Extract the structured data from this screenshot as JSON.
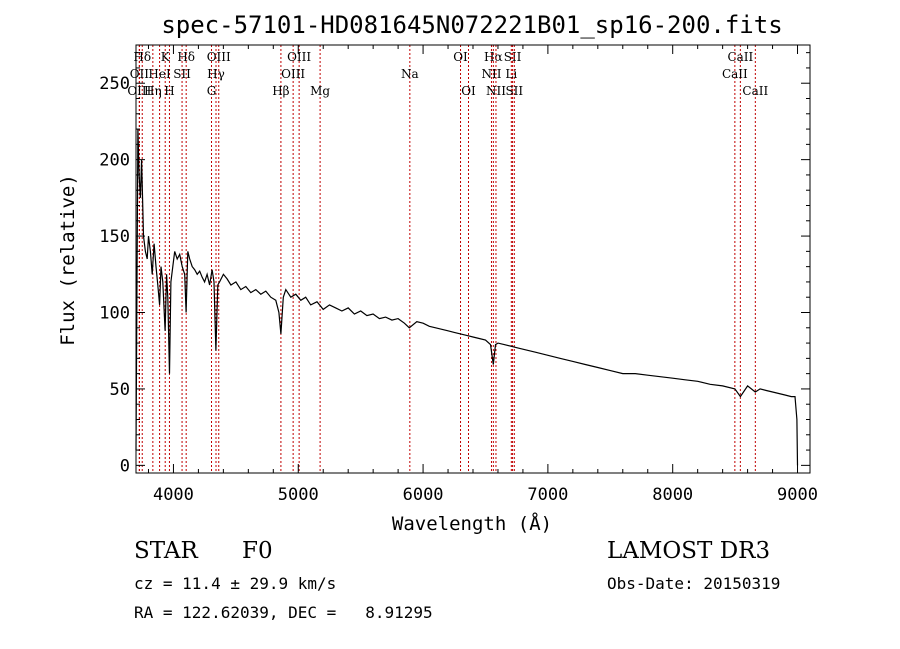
{
  "chart_data": {
    "type": "line",
    "title": "spec-57101-HD081645N072221B01_sp16-200.fits",
    "xlabel": "Wavelength (Å)",
    "ylabel": "Flux (relative)",
    "xlim": [
      3700,
      9100
    ],
    "ylim": [
      -5,
      275
    ],
    "x_ticks": [
      4000,
      5000,
      6000,
      7000,
      8000,
      9000
    ],
    "y_ticks": [
      0,
      50,
      100,
      150,
      200,
      250
    ],
    "grid": false,
    "series": [
      {
        "name": "flux",
        "x": [
          3700,
          3715,
          3725,
          3735,
          3745,
          3760,
          3775,
          3790,
          3800,
          3815,
          3830,
          3845,
          3860,
          3875,
          3889,
          3900,
          3915,
          3933,
          3945,
          3955,
          3968,
          3980,
          3995,
          4010,
          4030,
          4050,
          4070,
          4090,
          4101,
          4115,
          4130,
          4150,
          4170,
          4190,
          4210,
          4230,
          4250,
          4270,
          4290,
          4310,
          4325,
          4340,
          4355,
          4370,
          4400,
          4430,
          4460,
          4500,
          4540,
          4580,
          4620,
          4660,
          4700,
          4740,
          4780,
          4820,
          4845,
          4861,
          4880,
          4900,
          4940,
          4980,
          5020,
          5060,
          5100,
          5150,
          5200,
          5250,
          5300,
          5350,
          5400,
          5450,
          5500,
          5550,
          5600,
          5650,
          5700,
          5750,
          5800,
          5850,
          5890,
          5950,
          6000,
          6050,
          6100,
          6150,
          6200,
          6250,
          6300,
          6350,
          6400,
          6450,
          6500,
          6540,
          6563,
          6580,
          6600,
          6650,
          6700,
          6750,
          6800,
          6900,
          7000,
          7100,
          7200,
          7300,
          7400,
          7500,
          7600,
          7700,
          7800,
          7900,
          8000,
          8100,
          8200,
          8300,
          8400,
          8498,
          8542,
          8600,
          8662,
          8700,
          8750,
          8800,
          8850,
          8900,
          8950,
          8980,
          8995,
          9000
        ],
        "y": [
          10,
          220,
          190,
          175,
          200,
          150,
          140,
          135,
          150,
          140,
          125,
          145,
          130,
          118,
          105,
          130,
          120,
          88,
          125,
          110,
          60,
          120,
          130,
          140,
          135,
          138,
          130,
          125,
          100,
          140,
          135,
          130,
          128,
          125,
          127,
          123,
          120,
          125,
          118,
          128,
          120,
          75,
          118,
          120,
          125,
          122,
          118,
          120,
          115,
          117,
          113,
          115,
          112,
          114,
          110,
          108,
          100,
          86,
          110,
          115,
          110,
          112,
          108,
          110,
          105,
          107,
          102,
          105,
          103,
          101,
          103,
          99,
          101,
          98,
          99,
          96,
          97,
          95,
          96,
          93,
          90,
          94,
          93,
          91,
          90,
          89,
          88,
          87,
          86,
          85,
          84,
          83,
          82,
          79,
          66,
          79,
          80,
          79,
          78,
          77,
          76,
          74,
          72,
          70,
          68,
          66,
          64,
          62,
          60,
          60,
          59,
          58,
          57,
          56,
          55,
          53,
          52,
          50,
          45,
          52,
          48,
          50,
          49,
          48,
          47,
          46,
          45,
          45,
          30,
          0
        ]
      }
    ],
    "line_markers": [
      {
        "label": "Hδ",
        "x": 3750,
        "row": 1
      },
      {
        "label": "OII",
        "x": 3727,
        "row": 2
      },
      {
        "label": "OIII",
        "x": 3727,
        "row": 3
      },
      {
        "label": "K",
        "x": 3934,
        "row": 1
      },
      {
        "label": "HeI",
        "x": 3889,
        "row": 2
      },
      {
        "label": "Hη",
        "x": 3835,
        "row": 3
      },
      {
        "label": "Hδ",
        "x": 4102,
        "row": 1
      },
      {
        "label": "SII",
        "x": 4069,
        "row": 2
      },
      {
        "label": "H",
        "x": 3968,
        "row": 3
      },
      {
        "label": "OIII",
        "x": 4363,
        "row": 1
      },
      {
        "label": "Hγ",
        "x": 4341,
        "row": 2
      },
      {
        "label": "G",
        "x": 4305,
        "row": 3
      },
      {
        "label": "OIII",
        "x": 5007,
        "row": 1
      },
      {
        "label": "OIII",
        "x": 4959,
        "row": 2
      },
      {
        "label": "Hβ",
        "x": 4861,
        "row": 3
      },
      {
        "label": "Mg",
        "x": 5175,
        "row": 3
      },
      {
        "label": "Na",
        "x": 5894,
        "row": 2
      },
      {
        "label": "OI",
        "x": 6300,
        "row": 1
      },
      {
        "label": "OI",
        "x": 6364,
        "row": 3
      },
      {
        "label": "Hα",
        "x": 6563,
        "row": 1
      },
      {
        "label": "SII",
        "x": 6717,
        "row": 1
      },
      {
        "label": "NII",
        "x": 6548,
        "row": 2
      },
      {
        "label": "Li",
        "x": 6707,
        "row": 2
      },
      {
        "label": "NII",
        "x": 6584,
        "row": 3
      },
      {
        "label": "SII",
        "x": 6731,
        "row": 3
      },
      {
        "label": "CaII",
        "x": 8542,
        "row": 1
      },
      {
        "label": "CaII",
        "x": 8498,
        "row": 2
      },
      {
        "label": "CaII",
        "x": 8662,
        "row": 3
      }
    ]
  },
  "info": {
    "object_class": "STAR",
    "subclass": "F0",
    "survey": "LAMOST DR3",
    "redshift": "cz = 11.4 ± 29.9 km/s",
    "obs_date": "Obs-Date: 20150319",
    "coords": "RA = 122.62039, DEC =   8.91295"
  }
}
